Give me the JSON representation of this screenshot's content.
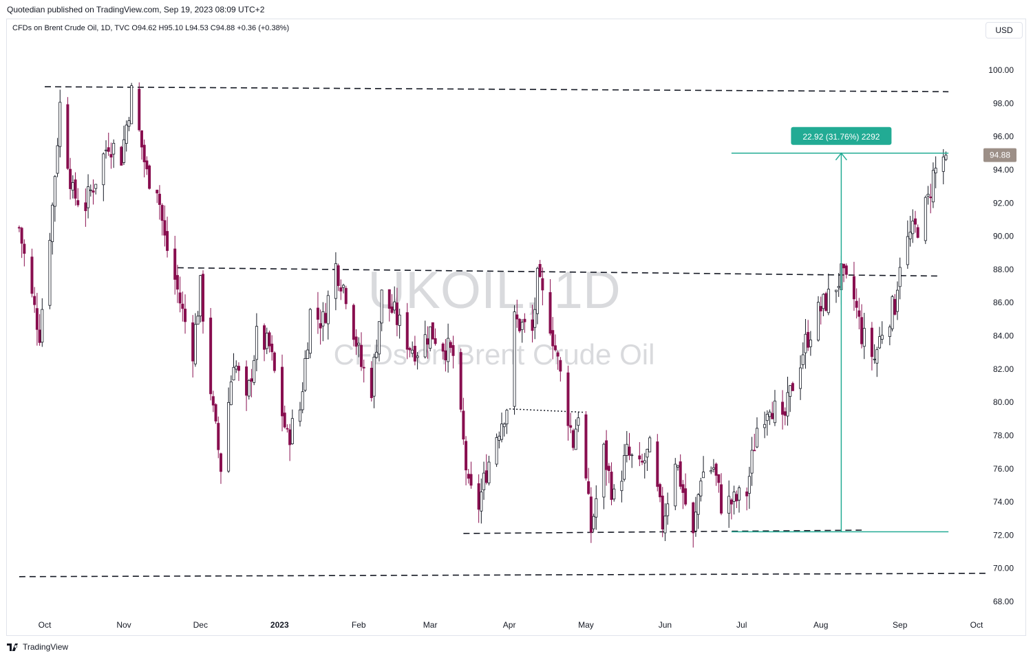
{
  "header": {
    "published": "Quotedian published on TradingView.com, Sep 19, 2023 08:09 UTC+2",
    "symbol_info": "CFDs on Brent Crude Oil, 1D, TVC  O94.62  H95.10  L94.53  C94.88  +0.36 (+0.38%)",
    "currency": "USD"
  },
  "watermark": {
    "symbol": "UKOIL, 1D",
    "description": "CFDs on Brent Crude Oil"
  },
  "footer": {
    "brand": "TradingView"
  },
  "colors": {
    "up": "#131722",
    "down": "#880e4f",
    "measure": "#22ab94",
    "price_tag": "#9c8f87"
  },
  "chart_data": {
    "type": "candlestick",
    "title": "CFDs on Brent Crude Oil, 1D, TVC",
    "x_ticks": [
      {
        "label": "Oct",
        "date": "2022-10-01"
      },
      {
        "label": "Nov",
        "date": "2022-11-01"
      },
      {
        "label": "Dec",
        "date": "2022-12-01"
      },
      {
        "label": "2023",
        "date": "2023-01-01",
        "bold": true
      },
      {
        "label": "Feb",
        "date": "2023-02-01"
      },
      {
        "label": "Mar",
        "date": "2023-03-01"
      },
      {
        "label": "Apr",
        "date": "2023-04-01"
      },
      {
        "label": "May",
        "date": "2023-05-01"
      },
      {
        "label": "Jun",
        "date": "2023-06-01"
      },
      {
        "label": "Jul",
        "date": "2023-07-01"
      },
      {
        "label": "Aug",
        "date": "2023-08-01"
      },
      {
        "label": "Sep",
        "date": "2023-09-01"
      },
      {
        "label": "Oct",
        "date": "2023-10-01"
      }
    ],
    "y_ticks": [
      "100.00",
      "98.00",
      "96.00",
      "94.00",
      "92.00",
      "90.00",
      "88.00",
      "86.00",
      "84.00",
      "82.00",
      "80.00",
      "78.00",
      "76.00",
      "74.00",
      "72.00",
      "70.00",
      "68.00"
    ],
    "y_range": [
      67.0,
      103.0
    ],
    "x_range": [
      "2022-09-21",
      "2023-10-05"
    ],
    "last_price": 94.88,
    "last_price_label": "94.88",
    "ohlc_last": {
      "open": 94.62,
      "high": 95.1,
      "low": 94.53,
      "close": 94.88,
      "change": 0.36,
      "change_pct": 0.38
    },
    "close_path": [
      [
        "2022-09-21",
        90.5
      ],
      [
        "2022-09-26",
        86.3
      ],
      [
        "2022-09-29",
        84.2
      ],
      [
        "2022-10-04",
        91.8
      ],
      [
        "2022-10-07",
        97.9
      ],
      [
        "2022-10-12",
        92.5
      ],
      [
        "2022-10-17",
        91.9
      ],
      [
        "2022-10-21",
        93.5
      ],
      [
        "2022-10-26",
        95.7
      ],
      [
        "2022-10-31",
        94.8
      ],
      [
        "2022-11-04",
        98.6
      ],
      [
        "2022-11-08",
        95.4
      ],
      [
        "2022-11-10",
        93.7
      ],
      [
        "2022-11-14",
        93.1
      ],
      [
        "2022-11-17",
        89.8
      ],
      [
        "2022-11-21",
        87.4
      ],
      [
        "2022-11-24",
        85.4
      ],
      [
        "2022-11-28",
        83.2
      ],
      [
        "2022-12-01",
        86.9
      ],
      [
        "2022-12-06",
        79.3
      ],
      [
        "2022-12-09",
        76.1
      ],
      [
        "2022-12-14",
        82.7
      ],
      [
        "2022-12-19",
        79.8
      ],
      [
        "2022-12-23",
        83.9
      ],
      [
        "2022-12-28",
        83.3
      ],
      [
        "2023-01-04",
        77.8
      ],
      [
        "2023-01-09",
        79.6
      ],
      [
        "2023-01-13",
        85.4
      ],
      [
        "2023-01-18",
        84.9
      ],
      [
        "2023-01-23",
        88.2
      ],
      [
        "2023-01-27",
        86.6
      ],
      [
        "2023-02-02",
        82.2
      ],
      [
        "2023-02-06",
        80.9
      ],
      [
        "2023-02-10",
        86.4
      ],
      [
        "2023-02-15",
        85.3
      ],
      [
        "2023-02-21",
        83.4
      ],
      [
        "2023-02-24",
        83.2
      ],
      [
        "2023-03-01",
        84.3
      ],
      [
        "2023-03-07",
        83.3
      ],
      [
        "2023-03-10",
        82.8
      ],
      [
        "2023-03-14",
        77.5
      ],
      [
        "2023-03-16",
        74.7
      ],
      [
        "2023-03-20",
        73.8
      ],
      [
        "2023-03-23",
        75.9
      ],
      [
        "2023-03-27",
        78.1
      ],
      [
        "2023-03-31",
        79.8
      ],
      [
        "2023-04-03",
        84.9
      ],
      [
        "2023-04-10",
        84.2
      ],
      [
        "2023-04-12",
        87.3
      ],
      [
        "2023-04-17",
        84.8
      ],
      [
        "2023-04-21",
        81.6
      ],
      [
        "2023-04-26",
        77.6
      ],
      [
        "2023-04-28",
        79.5
      ],
      [
        "2023-05-03",
        72.3
      ],
      [
        "2023-05-08",
        77.0
      ],
      [
        "2023-05-12",
        74.2
      ],
      [
        "2023-05-17",
        76.9
      ],
      [
        "2023-05-22",
        75.9
      ],
      [
        "2023-05-26",
        77.1
      ],
      [
        "2023-05-31",
        72.7
      ],
      [
        "2023-06-05",
        76.7
      ],
      [
        "2023-06-12",
        71.8
      ],
      [
        "2023-06-15",
        75.7
      ],
      [
        "2023-06-20",
        76.1
      ],
      [
        "2023-06-23",
        73.9
      ],
      [
        "2023-06-28",
        74.0
      ],
      [
        "2023-07-03",
        74.6
      ],
      [
        "2023-07-07",
        78.5
      ],
      [
        "2023-07-12",
        80.1
      ],
      [
        "2023-07-17",
        78.5
      ],
      [
        "2023-07-21",
        81.1
      ],
      [
        "2023-07-26",
        83.6
      ],
      [
        "2023-07-31",
        85.4
      ],
      [
        "2023-08-04",
        86.3
      ],
      [
        "2023-08-09",
        87.6
      ],
      [
        "2023-08-14",
        86.2
      ],
      [
        "2023-08-17",
        84.1
      ],
      [
        "2023-08-22",
        82.6
      ],
      [
        "2023-08-25",
        84.4
      ],
      [
        "2023-08-30",
        85.9
      ],
      [
        "2023-09-01",
        88.6
      ],
      [
        "2023-09-05",
        90.0
      ],
      [
        "2023-09-08",
        90.6
      ],
      [
        "2023-09-12",
        92.1
      ],
      [
        "2023-09-14",
        93.7
      ],
      [
        "2023-09-18",
        94.8
      ],
      [
        "2023-09-19",
        94.88
      ]
    ],
    "trendlines": [
      {
        "from": [
          "2022-10-01",
          99.0
        ],
        "to": [
          "2023-09-20",
          98.7
        ],
        "style": "dashed"
      },
      {
        "from": [
          "2022-11-22",
          88.1
        ],
        "to": [
          "2023-09-17",
          87.6
        ],
        "style": "dashed"
      },
      {
        "from": [
          "2023-03-14",
          72.1
        ],
        "to": [
          "2023-08-17",
          72.3
        ],
        "style": "dashed"
      },
      {
        "from": [
          "2022-09-21",
          69.5
        ],
        "to": [
          "2023-10-05",
          69.7
        ],
        "style": "dashed"
      },
      {
        "from": [
          "2023-04-01",
          79.6
        ],
        "to": [
          "2023-04-30",
          79.4
        ],
        "style": "dotted"
      }
    ],
    "measure": {
      "label": "22.92 (31.76%) 2292",
      "low": 72.2,
      "high": 95.0,
      "from": "2023-06-27",
      "to": "2023-09-20",
      "arrow_at": "2023-08-09"
    }
  }
}
